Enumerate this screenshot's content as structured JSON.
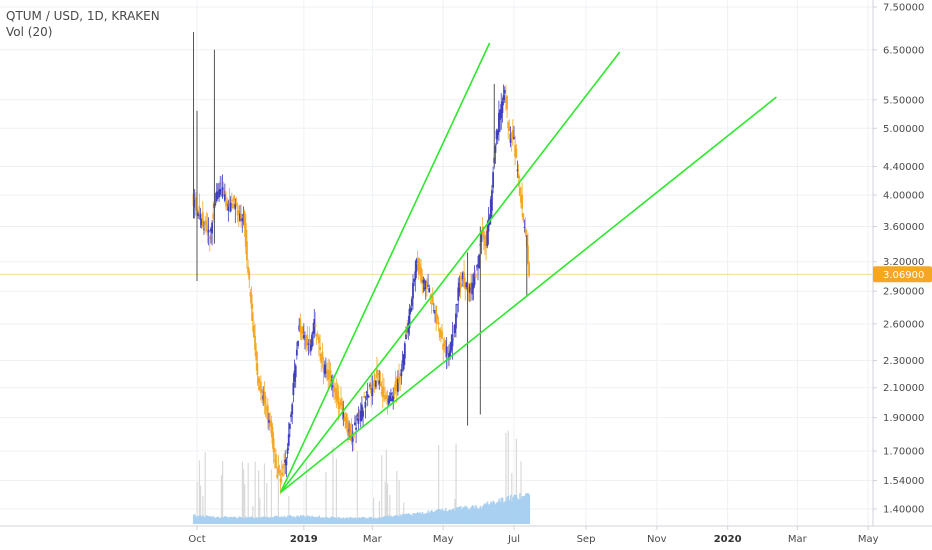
{
  "legend": {
    "symbol_line": "QTUM / USD, 1D, KRAKEN",
    "indicator_line": "Vol (20)"
  },
  "last_price": "3.06900",
  "colors": {
    "up_candle": "#3f3fbf",
    "down_candle": "#f5a623",
    "trend_line": "#2ee82e",
    "volume": "#a9d0f0",
    "volume_spike": "#d9d9d9",
    "price_line": "#f5a623",
    "grid": "#eef1f4",
    "axis_border": "#d0d3d8"
  },
  "chart_data": {
    "type": "candlestick",
    "y_scale": "log",
    "y_ticks": [
      "7.50000",
      "6.50000",
      "5.50000",
      "5.00000",
      "4.40000",
      "4.00000",
      "3.60000",
      "3.20000",
      "2.90000",
      "2.60000",
      "2.30000",
      "2.10000",
      "1.90000",
      "1.70000",
      "1.54000",
      "1.40000"
    ],
    "x_ticks": [
      {
        "label": "Oct",
        "date": "2018-10-01",
        "bold": false
      },
      {
        "label": "2019",
        "date": "2019-01-01",
        "bold": true
      },
      {
        "label": "Mar",
        "date": "2019-03-01",
        "bold": false
      },
      {
        "label": "May",
        "date": "2019-05-01",
        "bold": false
      },
      {
        "label": "Jul",
        "date": "2019-07-01",
        "bold": false
      },
      {
        "label": "Sep",
        "date": "2019-09-01",
        "bold": false
      },
      {
        "label": "Nov",
        "date": "2019-11-01",
        "bold": false
      },
      {
        "label": "2020",
        "date": "2020-01-01",
        "bold": true
      },
      {
        "label": "Mar",
        "date": "2020-03-01",
        "bold": false
      },
      {
        "label": "May",
        "date": "2020-05-01",
        "bold": false
      }
    ],
    "price_path": [
      [
        "2018-09-28",
        3.9
      ],
      [
        "2018-10-03",
        3.75
      ],
      [
        "2018-10-08",
        3.6
      ],
      [
        "2018-10-12",
        3.5
      ],
      [
        "2018-10-17",
        3.95
      ],
      [
        "2018-10-22",
        4.1
      ],
      [
        "2018-10-27",
        3.85
      ],
      [
        "2018-11-01",
        3.9
      ],
      [
        "2018-11-06",
        3.75
      ],
      [
        "2018-11-10",
        3.7
      ],
      [
        "2018-11-14",
        3.1
      ],
      [
        "2018-11-18",
        2.6
      ],
      [
        "2018-11-22",
        2.2
      ],
      [
        "2018-11-26",
        2.05
      ],
      [
        "2018-11-30",
        1.95
      ],
      [
        "2018-12-04",
        1.8
      ],
      [
        "2018-12-08",
        1.6
      ],
      [
        "2018-12-12",
        1.55
      ],
      [
        "2018-12-16",
        1.62
      ],
      [
        "2018-12-20",
        1.85
      ],
      [
        "2018-12-24",
        2.2
      ],
      [
        "2018-12-28",
        2.6
      ],
      [
        "2019-01-01",
        2.5
      ],
      [
        "2019-01-06",
        2.4
      ],
      [
        "2019-01-10",
        2.6
      ],
      [
        "2019-01-15",
        2.35
      ],
      [
        "2019-01-20",
        2.2
      ],
      [
        "2019-01-25",
        2.15
      ],
      [
        "2019-01-30",
        2.0
      ],
      [
        "2019-02-04",
        1.92
      ],
      [
        "2019-02-08",
        1.82
      ],
      [
        "2019-02-12",
        1.78
      ],
      [
        "2019-02-16",
        1.9
      ],
      [
        "2019-02-20",
        1.96
      ],
      [
        "2019-02-24",
        2.05
      ],
      [
        "2019-02-28",
        2.1
      ],
      [
        "2019-03-05",
        2.2
      ],
      [
        "2019-03-10",
        2.05
      ],
      [
        "2019-03-15",
        2.0
      ],
      [
        "2019-03-20",
        2.1
      ],
      [
        "2019-03-25",
        2.15
      ],
      [
        "2019-03-30",
        2.5
      ],
      [
        "2019-04-04",
        2.85
      ],
      [
        "2019-04-08",
        3.2
      ],
      [
        "2019-04-12",
        3.0
      ],
      [
        "2019-04-16",
        2.95
      ],
      [
        "2019-04-20",
        2.85
      ],
      [
        "2019-04-24",
        2.7
      ],
      [
        "2019-04-28",
        2.5
      ],
      [
        "2019-05-02",
        2.4
      ],
      [
        "2019-05-06",
        2.35
      ],
      [
        "2019-05-10",
        2.5
      ],
      [
        "2019-05-14",
        2.9
      ],
      [
        "2019-05-18",
        3.05
      ],
      [
        "2019-05-22",
        2.9
      ],
      [
        "2019-05-26",
        2.95
      ],
      [
        "2019-05-30",
        3.1
      ],
      [
        "2019-06-03",
        3.5
      ],
      [
        "2019-06-07",
        3.4
      ],
      [
        "2019-06-11",
        3.9
      ],
      [
        "2019-06-15",
        4.8
      ],
      [
        "2019-06-19",
        5.3
      ],
      [
        "2019-06-23",
        5.6
      ],
      [
        "2019-06-27",
        4.9
      ],
      [
        "2019-07-01",
        4.8
      ],
      [
        "2019-07-04",
        4.3
      ],
      [
        "2019-07-07",
        3.9
      ],
      [
        "2019-07-10",
        3.6
      ],
      [
        "2019-07-14",
        3.07
      ]
    ],
    "wick_spikes": [
      {
        "date": "2018-09-28",
        "high": 6.9,
        "low": 3.7
      },
      {
        "date": "2018-10-01",
        "high": 5.3,
        "low": 3.0
      },
      {
        "date": "2018-10-16",
        "high": 6.5,
        "low": 3.4
      },
      {
        "date": "2019-05-22",
        "high": 3.3,
        "low": 1.85
      },
      {
        "date": "2019-06-02",
        "high": 3.6,
        "low": 1.92
      },
      {
        "date": "2019-06-14",
        "high": 5.8,
        "low": 4.4
      },
      {
        "date": "2019-07-12",
        "high": 3.5,
        "low": 2.85
      }
    ],
    "trend_lines": [
      {
        "name": "fan-line-steep",
        "x1": "2018-12-12",
        "y1": 1.48,
        "x2": "2019-06-10",
        "y2": 6.65
      },
      {
        "name": "fan-line-middle",
        "x1": "2018-12-12",
        "y1": 1.48,
        "x2": "2019-09-30",
        "y2": 6.45
      },
      {
        "name": "fan-line-shallow",
        "x1": "2018-12-12",
        "y1": 1.48,
        "x2": "2020-02-12",
        "y2": 5.55
      }
    ],
    "volume_shape": [
      [
        "2018-09-28",
        0.55
      ],
      [
        "2018-10-05",
        0.5
      ],
      [
        "2018-10-20",
        0.45
      ],
      [
        "2018-11-10",
        0.4
      ],
      [
        "2018-12-01",
        0.45
      ],
      [
        "2019-01-01",
        0.5
      ],
      [
        "2019-02-01",
        0.4
      ],
      [
        "2019-03-01",
        0.38
      ],
      [
        "2019-04-01",
        0.6
      ],
      [
        "2019-05-01",
        0.85
      ],
      [
        "2019-06-01",
        1.1
      ],
      [
        "2019-06-20",
        1.5
      ],
      [
        "2019-07-14",
        1.9
      ]
    ]
  }
}
